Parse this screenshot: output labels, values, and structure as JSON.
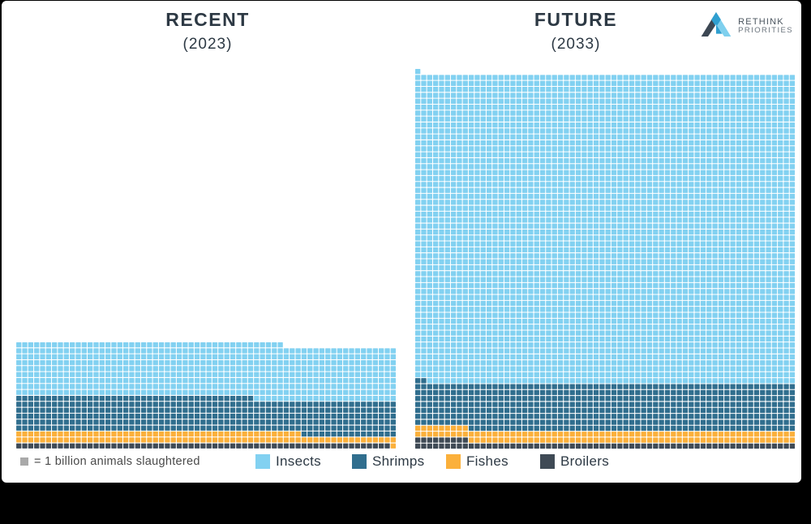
{
  "header": {
    "left_title": "RECENT",
    "left_subtitle": "(2023)",
    "right_title": "FUTURE",
    "right_subtitle": "(2033)",
    "logo_line1": "RETHINK",
    "logo_line2": "PRIORITIES"
  },
  "legend": {
    "unit_text": "= 1 billion animals slaughtered",
    "items": [
      {
        "label": "Insects",
        "color": "#82d1f1"
      },
      {
        "label": "Shrimps",
        "color": "#306e8e"
      },
      {
        "label": "Fishes",
        "color": "#fbb03b"
      },
      {
        "label": "Broilers",
        "color": "#3f4a55"
      }
    ]
  },
  "chart_data": {
    "type": "heatmap",
    "subtype": "waffle",
    "title": "Animals slaughtered: recent vs future",
    "unit": "1 square = 1 billion animals slaughtered",
    "columns": 64,
    "fill_order_bottom_up": [
      "Broilers",
      "Fishes",
      "Shrimps",
      "Insects"
    ],
    "colors": {
      "Insects": "#82d1f1",
      "Shrimps": "#306e8e",
      "Fishes": "#fbb03b",
      "Broilers": "#3f4a55"
    },
    "panels": [
      {
        "title": "RECENT",
        "year": "(2023)",
        "values_billions": {
          "Broilers": 63,
          "Fishes": 113,
          "Shrimps": 376,
          "Insects": 581
        },
        "total_billions": 1133
      },
      {
        "title": "FUTURE",
        "year": "(2033)",
        "values_billions": {
          "Broilers": 73,
          "Fishes": 128,
          "Shrimps": 505,
          "Insects": 3327
        },
        "total_billions": 4033
      }
    ]
  },
  "layout_colors": {
    "title_text": "#2d3944",
    "frame": "#000000",
    "background": "#ffffff"
  }
}
